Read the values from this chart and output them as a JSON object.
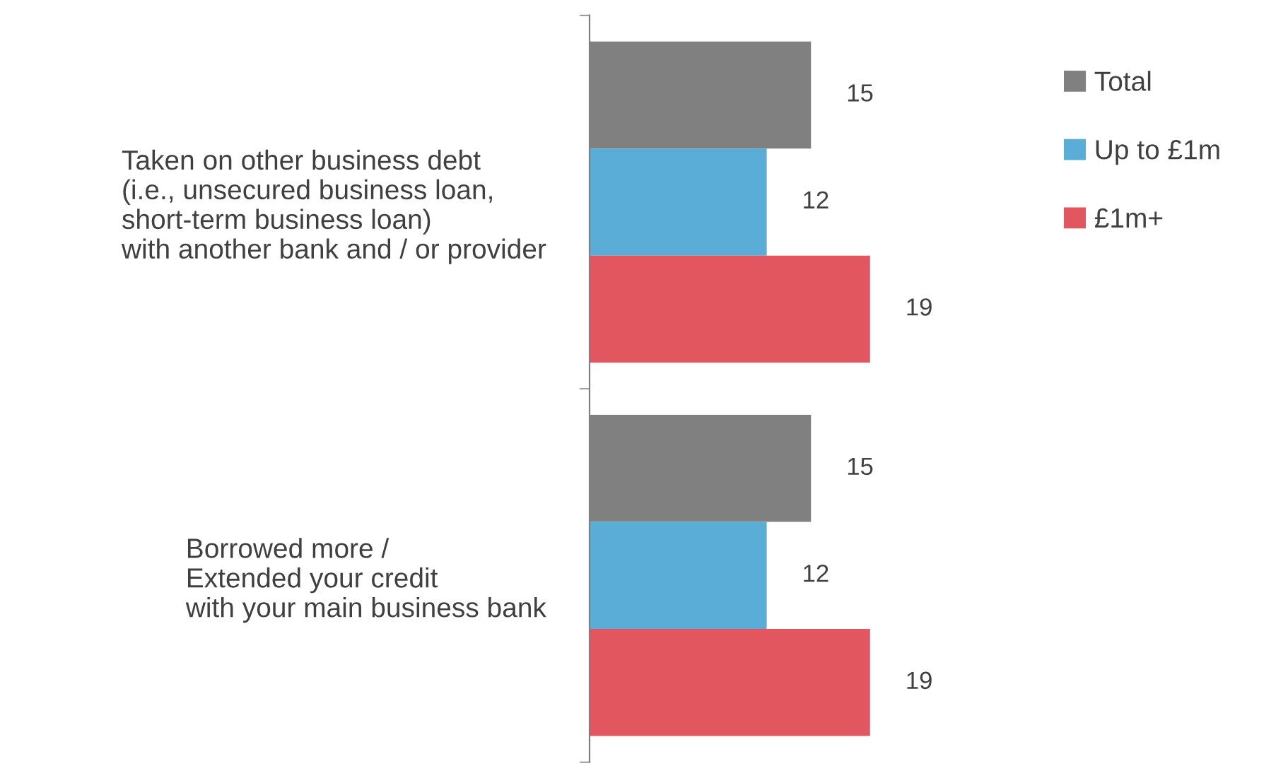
{
  "chart_data": {
    "type": "bar",
    "orientation": "horizontal",
    "categories": [
      "Taken on other business debt\n(i.e., unsecured business loan,\nshort-term business loan)\nwith another bank and / or provider",
      "Borrowed more /\nExtended your credit\nwith your main business bank"
    ],
    "series": [
      {
        "name": "Total",
        "color": "#808080",
        "values": [
          15,
          15
        ]
      },
      {
        "name": "Up to £1m",
        "color": "#5aadd6",
        "values": [
          12,
          12
        ]
      },
      {
        "name": "£1m+",
        "color": "#e2575f",
        "values": [
          19,
          19
        ]
      }
    ],
    "data_labels": true,
    "legend": "top right",
    "grid": false,
    "tick_labels": "y"
  }
}
